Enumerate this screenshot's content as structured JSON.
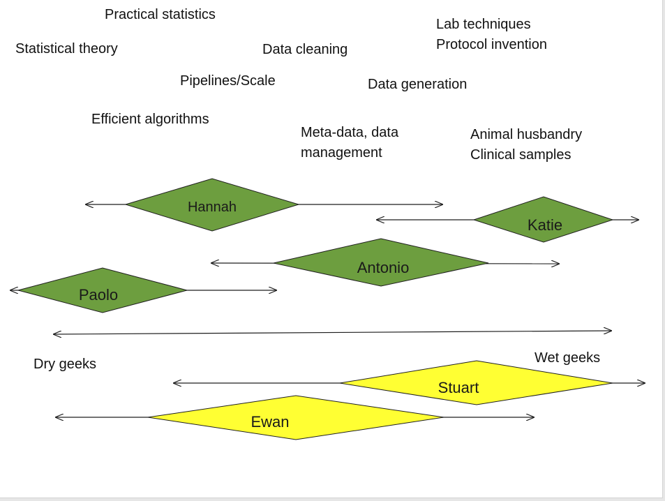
{
  "labels": {
    "practical_statistics": "Practical statistics",
    "statistical_theory": "Statistical theory",
    "data_cleaning": "Data cleaning",
    "lab_techniques": "Lab techniques\nProtocol invention",
    "pipelines_scale": "Pipelines/Scale",
    "data_generation": "Data generation",
    "efficient_algorithms": "Efficient algorithms",
    "metadata_management": "Meta-data, data\nmanagement",
    "animal_husbandry": "Animal husbandry\nClinical samples",
    "dry_geeks": "Dry geeks",
    "wet_geeks": "Wet geeks"
  },
  "people": {
    "hannah": "Hannah",
    "katie": "Katie",
    "antonio": "Antonio",
    "paolo": "Paolo",
    "stuart": "Stuart",
    "ewan": "Ewan"
  },
  "colors": {
    "green_fill": "#6d9e3f",
    "yellow_fill": "#ffff33",
    "outline": "#1f1f1f",
    "arrow": "#1f1f1f"
  },
  "icons": {
    "axis": "double-headed-arrow",
    "person": "diamond"
  }
}
